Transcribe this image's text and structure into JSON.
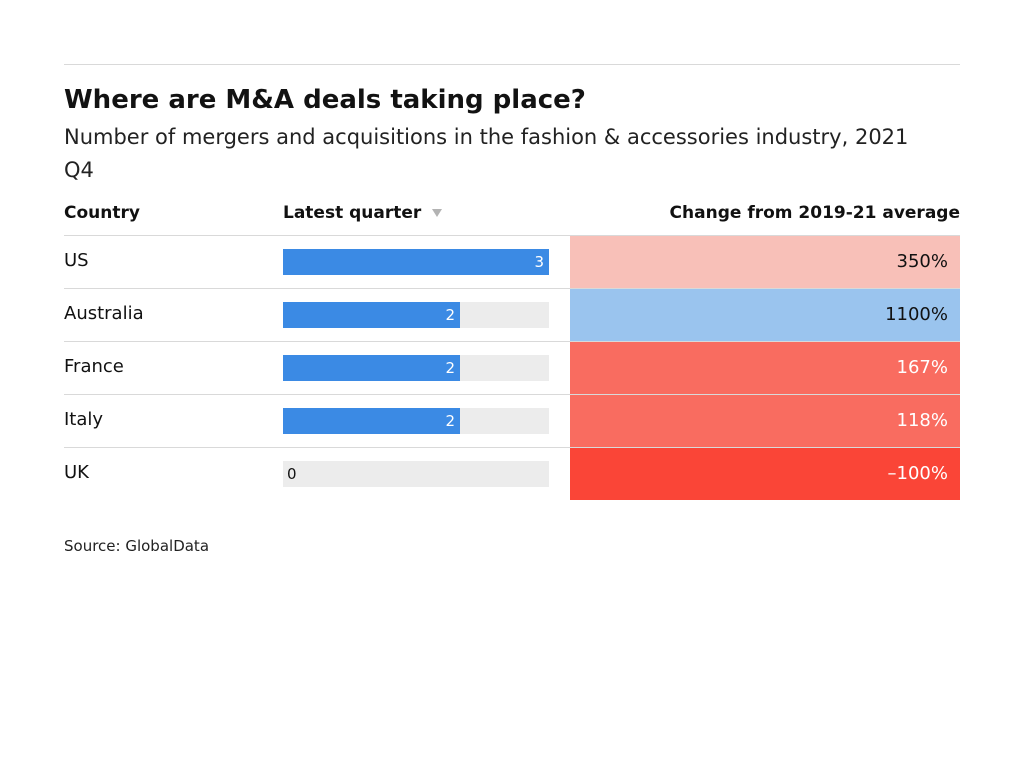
{
  "title": "Where are M&A deals taking place?",
  "subtitle": "Number of mergers and acquisitions in the fashion & accessories industry, 2021 Q4",
  "columns": {
    "country": "Country",
    "latest": "Latest quarter",
    "change": "Change from 2019-21 average"
  },
  "source": "Source: GlobalData",
  "chart_data": {
    "type": "table",
    "title": "Where are M&A deals taking place?",
    "subtitle": "Number of mergers and acquisitions in the fashion & accessories industry, 2021 Q4",
    "columns": [
      "Country",
      "Latest quarter",
      "Change from 2019-21 average"
    ],
    "sorted_by": "Latest quarter",
    "sort_direction": "descending",
    "bar_max": 3,
    "bar_color": "#3b8ae4",
    "rows": [
      {
        "country": "US",
        "latest": 3,
        "latest_label": "3",
        "change": 350,
        "change_label": "350%",
        "change_color": "#f8c0b8",
        "change_text_color": "#111111"
      },
      {
        "country": "Australia",
        "latest": 2,
        "latest_label": "2",
        "change": 1100,
        "change_label": "1100%",
        "change_color": "#9ac4ee",
        "change_text_color": "#111111"
      },
      {
        "country": "France",
        "latest": 2,
        "latest_label": "2",
        "change": 167,
        "change_label": "167%",
        "change_color": "#f96c60",
        "change_text_color": "#ffffff"
      },
      {
        "country": "Italy",
        "latest": 2,
        "latest_label": "2",
        "change": 118,
        "change_label": "118%",
        "change_color": "#f96c60",
        "change_text_color": "#ffffff"
      },
      {
        "country": "UK",
        "latest": 0,
        "latest_label": "0",
        "change": -100,
        "change_label": "–100%",
        "change_color": "#fa4537",
        "change_text_color": "#ffffff"
      }
    ]
  }
}
